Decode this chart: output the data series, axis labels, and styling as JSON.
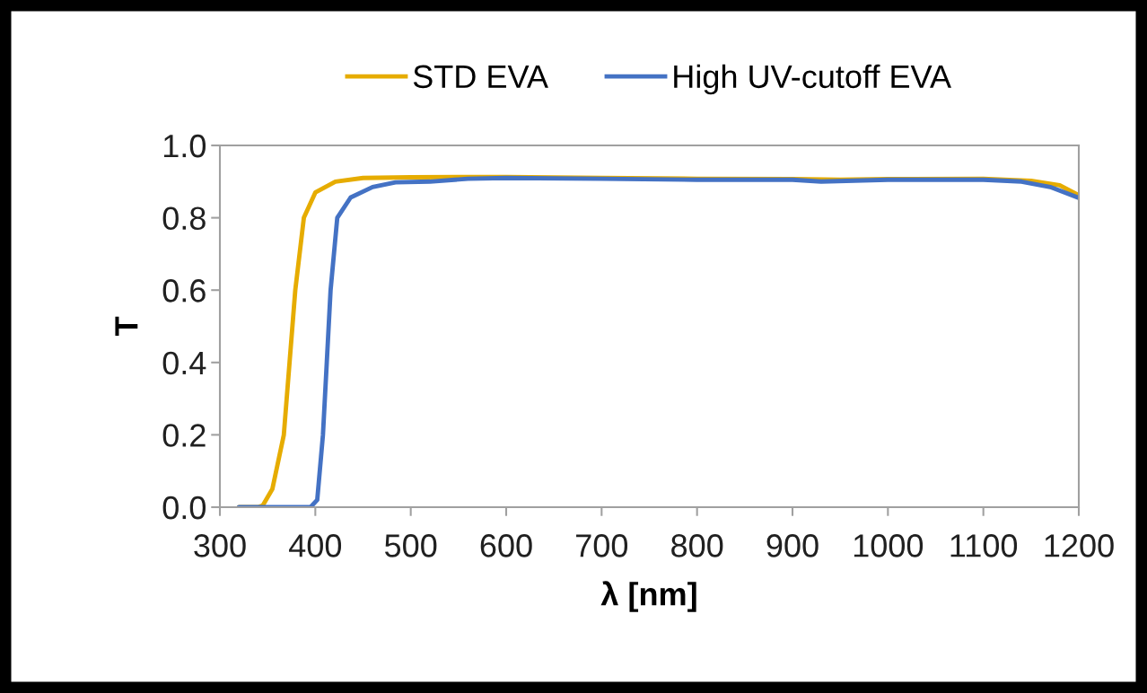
{
  "chart_data": {
    "type": "line",
    "xlabel": "λ [nm]",
    "ylabel": "T",
    "xlim": [
      300,
      1200
    ],
    "xticks": [
      300,
      400,
      500,
      600,
      700,
      800,
      900,
      1000,
      1100,
      1200
    ],
    "ylim": [
      0,
      1
    ],
    "yticks": [
      {
        "value": 0,
        "label": "0.0"
      },
      {
        "value": 0.2,
        "label": "0.2"
      },
      {
        "value": 0.4,
        "label": "0.4"
      },
      {
        "value": 0.6,
        "label": "0.6"
      },
      {
        "value": 0.8,
        "label": "0.8"
      },
      {
        "value": 1,
        "label": "1.0"
      }
    ],
    "grid": false,
    "legend": "top",
    "marker": "none",
    "line_style": "solid",
    "series": [
      {
        "name": "STD EVA",
        "color": "#e6ac00",
        "x": [
          320,
          340,
          345,
          355,
          367,
          373,
          379,
          388,
          400,
          421,
          450,
          500,
          600,
          700,
          800,
          900,
          950,
          1000,
          1100,
          1150,
          1180,
          1200
        ],
        "values": [
          0,
          0,
          0.005,
          0.05,
          0.2,
          0.4,
          0.6,
          0.8,
          0.87,
          0.9,
          0.91,
          0.912,
          0.913,
          0.91,
          0.908,
          0.907,
          0.905,
          0.907,
          0.908,
          0.902,
          0.89,
          0.862
        ]
      },
      {
        "name": "High UV-cutoff EVA",
        "color": "#4472c4",
        "x": [
          320,
          395,
          402,
          408,
          412,
          416,
          423,
          437,
          460,
          484,
          520,
          560,
          600,
          700,
          800,
          900,
          930,
          1000,
          1100,
          1140,
          1170,
          1200
        ],
        "values": [
          0,
          0,
          0.02,
          0.2,
          0.4,
          0.6,
          0.8,
          0.856,
          0.885,
          0.898,
          0.9,
          0.908,
          0.91,
          0.908,
          0.905,
          0.905,
          0.9,
          0.905,
          0.905,
          0.9,
          0.885,
          0.855
        ]
      }
    ]
  }
}
